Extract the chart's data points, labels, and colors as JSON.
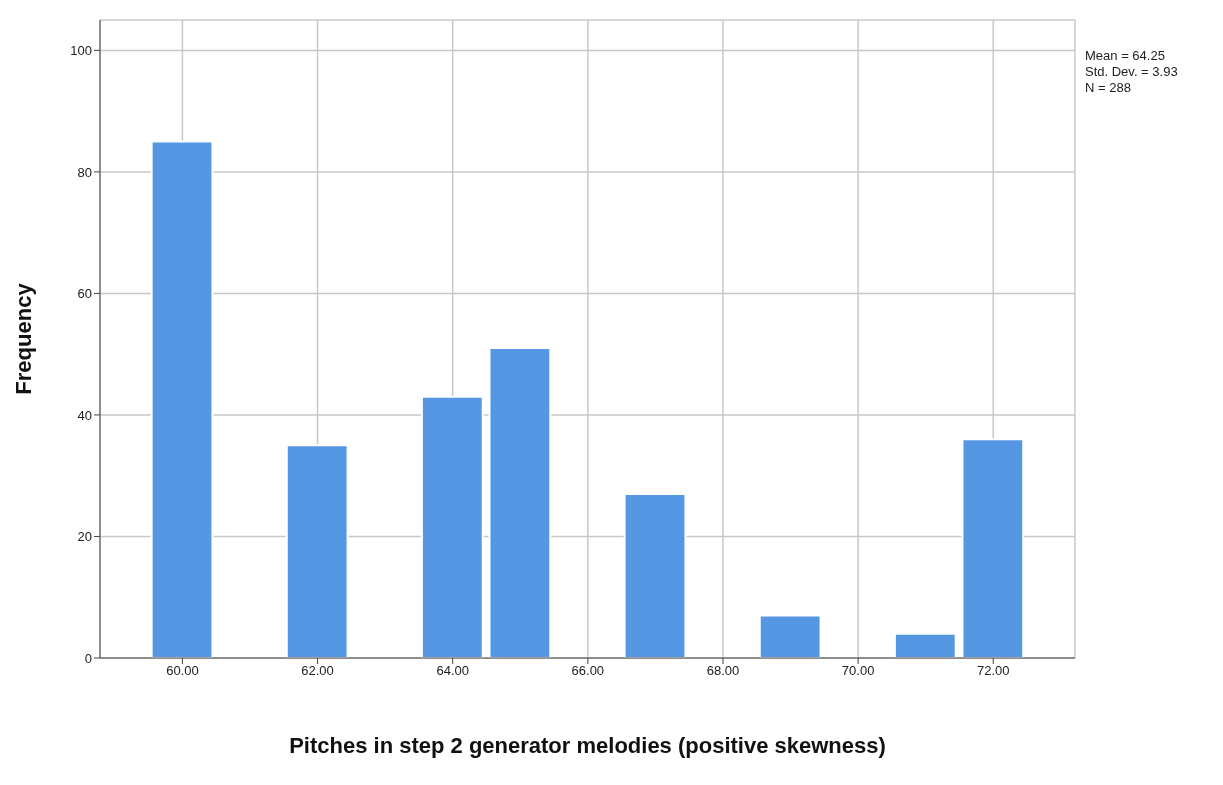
{
  "chart_data": {
    "type": "histogram",
    "xlabel": "Pitches in step 2 generator melodies (positive skewness)",
    "ylabel": "Frequency",
    "bins": [
      59.5,
      60.5,
      61.5,
      62.5,
      63.5,
      64.5,
      65.5,
      66.5,
      67.5,
      68.5,
      69.5,
      70.5,
      71.5,
      72.5
    ],
    "values": [
      85,
      0,
      35,
      0,
      43,
      51,
      0,
      27,
      0,
      7,
      0,
      4,
      36
    ],
    "color": "#5597e3",
    "xlim": [
      58.78,
      73.21
    ],
    "xticks": [
      {
        "value": 60,
        "label": "60.00"
      },
      {
        "value": 62,
        "label": "62.00"
      },
      {
        "value": 64,
        "label": "64.00"
      },
      {
        "value": 66,
        "label": "66.00"
      },
      {
        "value": 68,
        "label": "68.00"
      },
      {
        "value": 70,
        "label": "70.00"
      },
      {
        "value": 72,
        "label": "72.00"
      }
    ],
    "ylim": [
      0,
      105
    ],
    "yticks": [
      0,
      20,
      40,
      60,
      80,
      100
    ],
    "grid": true,
    "annotations": [
      "Mean = 64.25",
      "Std. Dev. = 3.93",
      "N = 288"
    ]
  }
}
